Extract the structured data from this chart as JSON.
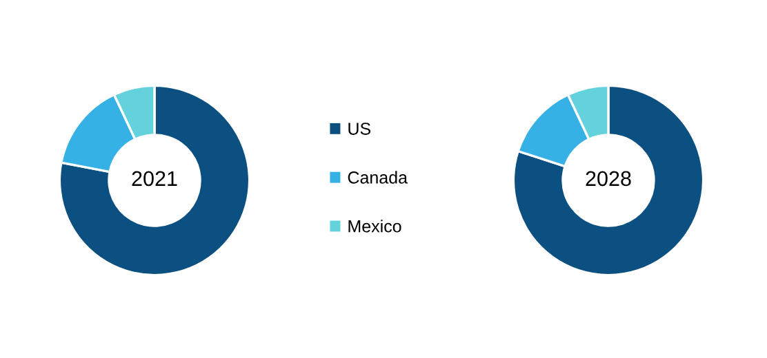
{
  "chart_data": [
    {
      "type": "donut",
      "title": "2021",
      "categories": [
        "US",
        "Canada",
        "Mexico"
      ],
      "values": [
        78,
        15,
        7
      ],
      "colors": [
        "#0b5080",
        "#35b1e6",
        "#63d2dc"
      ],
      "legend": "right"
    },
    {
      "type": "donut",
      "title": "2028",
      "categories": [
        null,
        null,
        null
      ],
      "values": [
        80,
        13,
        7
      ],
      "colors": [
        "#0b5080",
        "#35b1e6",
        "#63d2dc"
      ]
    }
  ]
}
